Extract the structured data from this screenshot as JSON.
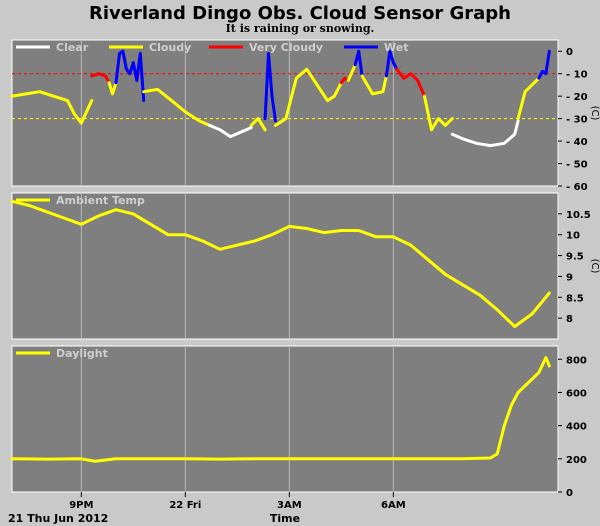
{
  "title": "Riverland Dingo Obs. Cloud Sensor Graph",
  "subtitle": "It is raining or snowing.",
  "x_axis": {
    "label": "Time",
    "date_label": "21 Thu Jun 2012",
    "ticks": [
      "9PM",
      "22 Fri",
      "3AM",
      "6AM"
    ]
  },
  "colors": {
    "background": "#c9c9c9",
    "plot_bg": "#7f7f7f",
    "grid": "#b8b8b8",
    "clear": "#ffffff",
    "cloudy": "#ffff00",
    "very_cloudy": "#ff0000",
    "wet": "#0000ff"
  },
  "chart_data": [
    {
      "type": "line",
      "panel": "cloud",
      "unit": "(C)",
      "ylim": [
        -60,
        5
      ],
      "y_ticks": [
        0,
        -10,
        -20,
        -30,
        -40,
        -50,
        -60
      ],
      "thresholds": [
        {
          "value": -10,
          "color": "#ff0000",
          "style": "dashed"
        },
        {
          "value": -30,
          "color": "#ffff00",
          "style": "dashed"
        }
      ],
      "legend": [
        {
          "label": "Clear",
          "color": "#ffffff"
        },
        {
          "label": "Cloudy",
          "color": "#ffff00"
        },
        {
          "label": "Very Cloudy",
          "color": "#ff0000"
        },
        {
          "label": "Wet",
          "color": "#0000ff"
        }
      ],
      "series": [
        {
          "name": "Cloudy",
          "color": "#ffff00",
          "x": [
            19.0,
            19.4,
            19.8,
            20.2,
            20.6,
            20.8,
            21.0,
            21.3
          ],
          "y": [
            -20,
            -19,
            -18,
            -20,
            -22,
            -28,
            -32,
            -22
          ]
        },
        {
          "name": "Very Cloudy",
          "color": "#ff0000",
          "x": [
            21.3,
            21.5,
            21.7,
            21.8
          ],
          "y": [
            -11,
            -10,
            -11,
            -14
          ]
        },
        {
          "name": "Cloudy",
          "color": "#ffff00",
          "x": [
            21.8,
            21.9,
            22.0
          ],
          "y": [
            -14,
            -19,
            -14
          ]
        },
        {
          "name": "Wet",
          "color": "#0000ff",
          "x": [
            22.0,
            22.1,
            22.2,
            22.3,
            22.4,
            22.5,
            22.6,
            22.7,
            22.8
          ],
          "y": [
            -14,
            -1,
            0,
            -8,
            -10,
            -5,
            -13,
            -1,
            -22
          ]
        },
        {
          "name": "Cloudy",
          "color": "#ffff00",
          "x": [
            22.8,
            23.2,
            23.6,
            24.0,
            24.4,
            24.7
          ],
          "y": [
            -18,
            -17,
            -22,
            -27,
            -31,
            -33
          ]
        },
        {
          "name": "Clear",
          "color": "#ffffff",
          "x": [
            24.7,
            25.0,
            25.3,
            25.6,
            25.9
          ],
          "y": [
            -33,
            -35,
            -38,
            -36,
            -34
          ]
        },
        {
          "name": "Cloudy",
          "color": "#ffff00",
          "x": [
            25.9,
            26.1,
            26.3
          ],
          "y": [
            -33,
            -30,
            -35
          ]
        },
        {
          "name": "Wet",
          "color": "#0000ff",
          "x": [
            26.3,
            26.4,
            26.5,
            26.6
          ],
          "y": [
            -30,
            -1,
            -20,
            -31
          ]
        },
        {
          "name": "Cloudy",
          "color": "#ffff00",
          "x": [
            26.6,
            26.9,
            27.2,
            27.5,
            27.8,
            28.1,
            28.3,
            28.5
          ],
          "y": [
            -33,
            -30,
            -12,
            -8,
            -15,
            -22,
            -20,
            -14
          ]
        },
        {
          "name": "Very Cloudy",
          "color": "#ff0000",
          "x": [
            28.5,
            28.6,
            28.7
          ],
          "y": [
            -14,
            -12,
            -13
          ]
        },
        {
          "name": "Cloudy",
          "color": "#ffff00",
          "x": [
            28.7,
            28.9
          ],
          "y": [
            -13,
            -6
          ]
        },
        {
          "name": "Wet",
          "color": "#0000ff",
          "x": [
            28.9,
            29.0,
            29.1
          ],
          "y": [
            -6,
            0,
            -11
          ]
        },
        {
          "name": "Cloudy",
          "color": "#ffff00",
          "x": [
            29.1,
            29.4,
            29.7,
            29.8
          ],
          "y": [
            -11,
            -19,
            -18,
            -11
          ]
        },
        {
          "name": "Wet",
          "color": "#0000ff",
          "x": [
            29.8,
            29.9,
            30.0,
            30.1
          ],
          "y": [
            -11,
            0,
            -5,
            -8
          ]
        },
        {
          "name": "Very Cloudy",
          "color": "#ff0000",
          "x": [
            30.1,
            30.3,
            30.5,
            30.7,
            30.9
          ],
          "y": [
            -8,
            -12,
            -10,
            -13,
            -20
          ]
        },
        {
          "name": "Cloudy",
          "color": "#ffff00",
          "x": [
            30.9,
            31.1,
            31.3,
            31.5,
            31.7
          ],
          "y": [
            -20,
            -35,
            -30,
            -33,
            -30
          ]
        },
        {
          "name": "Clear",
          "color": "#ffffff",
          "x": [
            31.7,
            32.0,
            32.4,
            32.8,
            33.2,
            33.5,
            33.6
          ],
          "y": [
            -37,
            -39,
            -41,
            -42,
            -41,
            -37,
            -31
          ]
        },
        {
          "name": "Cloudy",
          "color": "#ffff00",
          "x": [
            33.6,
            33.8,
            34.0,
            34.2
          ],
          "y": [
            -30,
            -18,
            -15,
            -12
          ]
        },
        {
          "name": "Wet",
          "color": "#0000ff",
          "x": [
            34.2,
            34.3,
            34.4,
            34.5
          ],
          "y": [
            -12,
            -9,
            -10,
            0
          ]
        }
      ]
    },
    {
      "type": "line",
      "panel": "ambient",
      "unit": "(C)",
      "ylim": [
        7.5,
        11.0
      ],
      "y_ticks": [
        10.5,
        10.0,
        9.5,
        9.0,
        8.5,
        8.0
      ],
      "legend": [
        {
          "label": "Ambient Temp",
          "color": "#ffff00"
        }
      ],
      "series": [
        {
          "name": "Ambient Temp",
          "color": "#ffff00",
          "x": [
            19.0,
            19.5,
            20.0,
            20.5,
            21.0,
            21.5,
            22.0,
            22.5,
            23.0,
            23.5,
            24.0,
            24.5,
            25.0,
            25.5,
            26.0,
            26.5,
            27.0,
            27.5,
            28.0,
            28.5,
            29.0,
            29.5,
            30.0,
            30.5,
            31.0,
            31.5,
            32.0,
            32.5,
            33.0,
            33.5,
            34.0,
            34.5
          ],
          "y": [
            10.8,
            10.7,
            10.55,
            10.4,
            10.25,
            10.45,
            10.6,
            10.5,
            10.25,
            10.0,
            10.0,
            9.85,
            9.65,
            9.75,
            9.85,
            10.0,
            10.2,
            10.15,
            10.05,
            10.1,
            10.1,
            9.95,
            9.95,
            9.75,
            9.4,
            9.05,
            8.8,
            8.55,
            8.2,
            7.8,
            8.1,
            8.6
          ]
        }
      ]
    },
    {
      "type": "line",
      "panel": "daylight",
      "unit": "",
      "ylim": [
        0,
        880
      ],
      "y_ticks": [
        800,
        600,
        400,
        200,
        0
      ],
      "legend": [
        {
          "label": "Daylight",
          "color": "#ffff00"
        }
      ],
      "series": [
        {
          "name": "Daylight",
          "color": "#ffff00",
          "x": [
            19.0,
            20.0,
            21.0,
            21.4,
            22.0,
            23.0,
            24.0,
            25.0,
            26.0,
            27.0,
            28.0,
            29.0,
            30.0,
            31.0,
            32.0,
            32.8,
            33.0,
            33.2,
            33.4,
            33.6,
            33.9,
            34.2,
            34.4,
            34.5
          ],
          "y": [
            200,
            198,
            200,
            185,
            200,
            200,
            200,
            198,
            200,
            200,
            200,
            200,
            200,
            200,
            200,
            205,
            230,
            400,
            520,
            600,
            660,
            720,
            810,
            760
          ]
        }
      ]
    }
  ]
}
